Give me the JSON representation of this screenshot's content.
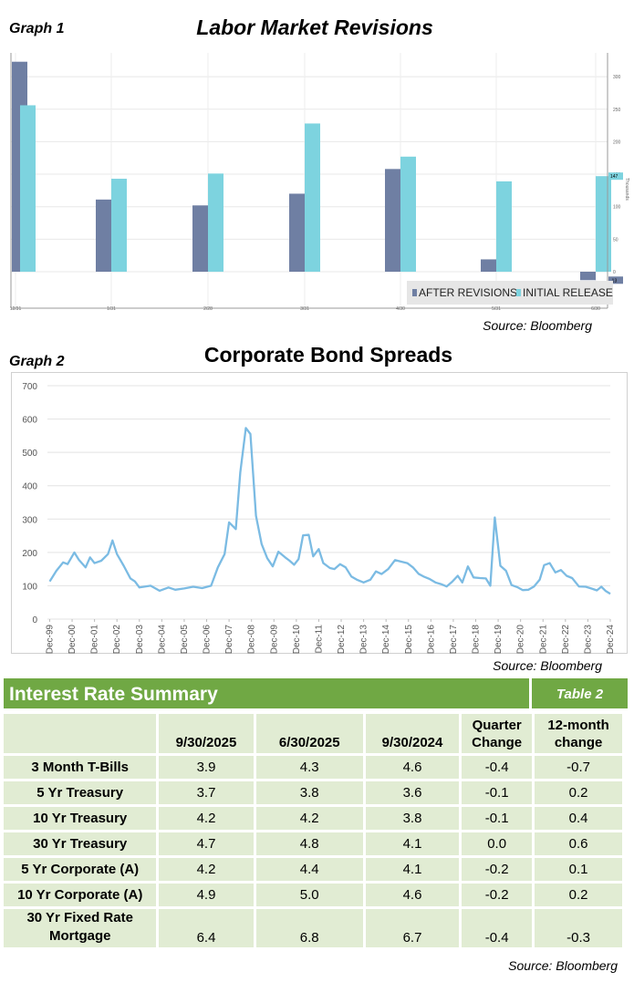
{
  "graph1": {
    "label": "Graph 1",
    "source": "Source: Bloomberg",
    "chart_data": {
      "type": "bar",
      "title": "Labor Market Revisions",
      "categories": [
        "12/31",
        "1/31",
        "2/28",
        "3/31",
        "4/30",
        "5/31",
        "6/30"
      ],
      "series": [
        {
          "name": "AFTER REVISIONS",
          "color": "#6f7fa3",
          "values": [
            323,
            111,
            102,
            120,
            158,
            19,
            -13
          ]
        },
        {
          "name": "INITIAL RELEASE",
          "color": "#7dd3df",
          "values": [
            256,
            143,
            151,
            228,
            177,
            139,
            147
          ]
        }
      ],
      "ylim": [
        -13,
        323
      ],
      "yticks": [
        0,
        50,
        100,
        150,
        200,
        250,
        300
      ],
      "ylabel": "Thousands",
      "last_value_labels": [
        "147",
        "-13"
      ],
      "legend_position": "bottom-right"
    }
  },
  "graph2": {
    "label": "Graph 2",
    "source": "Source: Bloomberg",
    "chart_data": {
      "type": "line",
      "title": "Corporate Bond Spreads",
      "color": "#7bbbe3",
      "ylim": [
        0,
        700
      ],
      "yticks": [
        0,
        100,
        200,
        300,
        400,
        500,
        600,
        700
      ],
      "xlim": [
        1999.9,
        2025.0
      ],
      "xtick_labels": [
        "Dec-99",
        "Dec-00",
        "Dec-01",
        "Dec-02",
        "Dec-03",
        "Dec-04",
        "Dec-05",
        "Dec-06",
        "Dec-07",
        "Dec-08",
        "Dec-09",
        "Dec-10",
        "Dec-11",
        "Dec-12",
        "Dec-13",
        "Dec-14",
        "Dec-15",
        "Dec-16",
        "Dec-17",
        "Dec-18",
        "Dec-19",
        "Dec-20",
        "Dec-21",
        "Dec-22",
        "Dec-23",
        "Dec-24"
      ],
      "points": [
        [
          2000.0,
          113
        ],
        [
          2000.3,
          145
        ],
        [
          2000.6,
          170
        ],
        [
          2000.8,
          165
        ],
        [
          2001.1,
          200
        ],
        [
          2001.3,
          178
        ],
        [
          2001.6,
          155
        ],
        [
          2001.8,
          185
        ],
        [
          2002.0,
          168
        ],
        [
          2002.3,
          175
        ],
        [
          2002.6,
          195
        ],
        [
          2002.8,
          236
        ],
        [
          2003.0,
          195
        ],
        [
          2003.3,
          160
        ],
        [
          2003.6,
          122
        ],
        [
          2003.8,
          113
        ],
        [
          2004.0,
          95
        ],
        [
          2004.5,
          100
        ],
        [
          2004.9,
          85
        ],
        [
          2005.3,
          95
        ],
        [
          2005.6,
          88
        ],
        [
          2006.0,
          92
        ],
        [
          2006.4,
          97
        ],
        [
          2006.8,
          93
        ],
        [
          2007.2,
          100
        ],
        [
          2007.5,
          155
        ],
        [
          2007.8,
          195
        ],
        [
          2008.0,
          290
        ],
        [
          2008.3,
          270
        ],
        [
          2008.5,
          440
        ],
        [
          2008.75,
          573
        ],
        [
          2008.95,
          555
        ],
        [
          2009.2,
          310
        ],
        [
          2009.45,
          225
        ],
        [
          2009.7,
          183
        ],
        [
          2009.95,
          158
        ],
        [
          2010.2,
          202
        ],
        [
          2010.5,
          185
        ],
        [
          2010.7,
          175
        ],
        [
          2010.9,
          163
        ],
        [
          2011.1,
          180
        ],
        [
          2011.3,
          251
        ],
        [
          2011.55,
          253
        ],
        [
          2011.75,
          188
        ],
        [
          2012.0,
          210
        ],
        [
          2012.2,
          168
        ],
        [
          2012.5,
          153
        ],
        [
          2012.7,
          150
        ],
        [
          2012.95,
          165
        ],
        [
          2013.2,
          155
        ],
        [
          2013.45,
          128
        ],
        [
          2013.7,
          118
        ],
        [
          2014.0,
          110
        ],
        [
          2014.3,
          118
        ],
        [
          2014.55,
          143
        ],
        [
          2014.8,
          135
        ],
        [
          2015.1,
          150
        ],
        [
          2015.4,
          177
        ],
        [
          2015.7,
          172
        ],
        [
          2015.95,
          168
        ],
        [
          2016.2,
          155
        ],
        [
          2016.45,
          136
        ],
        [
          2016.7,
          127
        ],
        [
          2016.95,
          120
        ],
        [
          2017.2,
          110
        ],
        [
          2017.45,
          105
        ],
        [
          2017.7,
          98
        ],
        [
          2017.95,
          112
        ],
        [
          2018.2,
          130
        ],
        [
          2018.4,
          110
        ],
        [
          2018.65,
          158
        ],
        [
          2018.9,
          125
        ],
        [
          2019.2,
          123
        ],
        [
          2019.45,
          122
        ],
        [
          2019.65,
          100
        ],
        [
          2019.85,
          305
        ],
        [
          2020.1,
          160
        ],
        [
          2020.35,
          145
        ],
        [
          2020.6,
          102
        ],
        [
          2020.85,
          96
        ],
        [
          2021.1,
          87
        ],
        [
          2021.35,
          88
        ],
        [
          2021.6,
          98
        ],
        [
          2021.85,
          118
        ],
        [
          2022.05,
          162
        ],
        [
          2022.3,
          168
        ],
        [
          2022.55,
          140
        ],
        [
          2022.8,
          147
        ],
        [
          2023.05,
          130
        ],
        [
          2023.3,
          123
        ],
        [
          2023.6,
          98
        ],
        [
          2023.9,
          97
        ],
        [
          2024.15,
          92
        ],
        [
          2024.4,
          86
        ],
        [
          2024.6,
          97
        ],
        [
          2024.8,
          84
        ],
        [
          2025.0,
          76
        ]
      ]
    }
  },
  "table": {
    "title": "Interest Rate Summary",
    "label": "Table 2",
    "headers": [
      "",
      "9/30/2025",
      "6/30/2025",
      "9/30/2024",
      "Quarter Change",
      "12-month change"
    ],
    "rows": [
      {
        "label": "3 Month T-Bills",
        "values": [
          "3.9",
          "4.3",
          "4.6",
          "-0.4",
          "-0.7"
        ]
      },
      {
        "label": "5 Yr Treasury",
        "values": [
          "3.7",
          "3.8",
          "3.6",
          "-0.1",
          "0.2"
        ]
      },
      {
        "label": "10 Yr Treasury",
        "values": [
          "4.2",
          "4.2",
          "3.8",
          "-0.1",
          "0.4"
        ]
      },
      {
        "label": "30 Yr Treasury",
        "values": [
          "4.7",
          "4.8",
          "4.1",
          "0.0",
          "0.6"
        ]
      },
      {
        "label": "5 Yr Corporate (A)",
        "values": [
          "4.2",
          "4.4",
          "4.1",
          "-0.2",
          "0.1"
        ]
      },
      {
        "label": "10 Yr Corporate (A)",
        "values": [
          "4.9",
          "5.0",
          "4.6",
          "-0.2",
          "0.2"
        ]
      },
      {
        "label": "30 Yr Fixed Rate Mortgage",
        "values": [
          "6.4",
          "6.8",
          "6.7",
          "-0.4",
          "-0.3"
        ]
      }
    ],
    "source": "Source: Bloomberg"
  }
}
